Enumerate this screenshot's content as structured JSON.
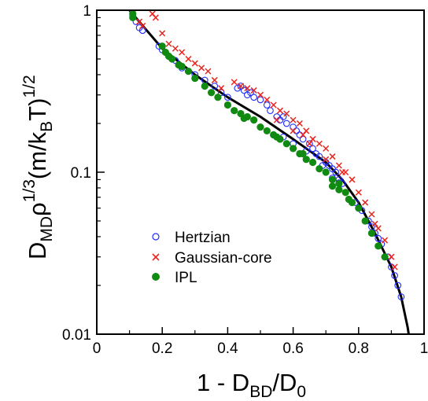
{
  "chart_data": {
    "type": "scatter",
    "x_label_parts": {
      "base": "1 - D",
      "sub": "BD",
      "tail": "/D",
      "sub2": "0"
    },
    "y_label_parts": {
      "d": "D",
      "dsub": "MD",
      "rho": "ρ",
      "rho_sup": "1/3",
      "mid": "(m/k",
      "ksub": "B",
      "tail": "T)",
      "sup": "1/2"
    },
    "x_axis": {
      "min": 0,
      "max": 1,
      "ticks": [
        0,
        0.2,
        0.4,
        0.6,
        0.8,
        1
      ],
      "tick_labels": [
        "0",
        "0.2",
        "0.4",
        "0.6",
        "0.8",
        "1"
      ]
    },
    "y_axis": {
      "scale": "log",
      "min": 0.01,
      "max": 1,
      "ticks": [
        0.01,
        0.1,
        1
      ],
      "tick_labels": [
        "0.01",
        "0.1",
        "1"
      ]
    },
    "legend_position": "bottom-left",
    "colors": {
      "hertzian": "#1f2bff",
      "gaussian": "#e8251f",
      "ipl": "#118a11",
      "fit": "#000000"
    },
    "series": [
      {
        "name": "Hertzian",
        "marker": "open-circle",
        "points": [
          [
            0.11,
            0.92
          ],
          [
            0.12,
            0.85
          ],
          [
            0.13,
            0.78
          ],
          [
            0.14,
            0.75
          ],
          [
            0.19,
            0.6
          ],
          [
            0.2,
            0.57
          ],
          [
            0.22,
            0.52
          ],
          [
            0.24,
            0.49
          ],
          [
            0.26,
            0.44
          ],
          [
            0.28,
            0.42
          ],
          [
            0.3,
            0.4
          ],
          [
            0.33,
            0.37
          ],
          [
            0.36,
            0.34
          ],
          [
            0.38,
            0.31
          ],
          [
            0.4,
            0.29
          ],
          [
            0.43,
            0.33
          ],
          [
            0.44,
            0.34
          ],
          [
            0.45,
            0.32
          ],
          [
            0.46,
            0.3
          ],
          [
            0.47,
            0.31
          ],
          [
            0.48,
            0.29
          ],
          [
            0.5,
            0.28
          ],
          [
            0.52,
            0.26
          ],
          [
            0.53,
            0.24
          ],
          [
            0.55,
            0.22
          ],
          [
            0.56,
            0.21
          ],
          [
            0.57,
            0.22
          ],
          [
            0.58,
            0.2
          ],
          [
            0.6,
            0.19
          ],
          [
            0.61,
            0.18
          ],
          [
            0.62,
            0.17
          ],
          [
            0.63,
            0.16
          ],
          [
            0.65,
            0.15
          ],
          [
            0.66,
            0.14
          ],
          [
            0.67,
            0.13
          ],
          [
            0.68,
            0.125
          ],
          [
            0.7,
            0.115
          ],
          [
            0.71,
            0.11
          ],
          [
            0.72,
            0.105
          ],
          [
            0.73,
            0.1
          ],
          [
            0.74,
            0.09
          ],
          [
            0.75,
            0.085
          ],
          [
            0.57,
            0.165
          ],
          [
            0.6,
            0.15
          ],
          [
            0.64,
            0.135
          ],
          [
            0.69,
            0.11
          ],
          [
            0.72,
            0.092
          ],
          [
            0.74,
            0.086
          ],
          [
            0.79,
            0.065
          ],
          [
            0.81,
            0.058
          ],
          [
            0.83,
            0.05
          ],
          [
            0.85,
            0.042
          ],
          [
            0.87,
            0.036
          ],
          [
            0.89,
            0.03
          ],
          [
            0.9,
            0.026
          ],
          [
            0.91,
            0.023
          ],
          [
            0.92,
            0.02
          ],
          [
            0.93,
            0.017
          ],
          [
            0.84,
            0.046
          ],
          [
            0.86,
            0.039
          ]
        ]
      },
      {
        "name": "Gaussian-core",
        "marker": "cross",
        "points": [
          [
            0.11,
            0.95
          ],
          [
            0.13,
            0.85
          ],
          [
            0.14,
            0.8
          ],
          [
            0.17,
            0.95
          ],
          [
            0.18,
            0.9
          ],
          [
            0.2,
            0.72
          ],
          [
            0.22,
            0.62
          ],
          [
            0.24,
            0.58
          ],
          [
            0.26,
            0.55
          ],
          [
            0.28,
            0.5
          ],
          [
            0.3,
            0.47
          ],
          [
            0.32,
            0.44
          ],
          [
            0.34,
            0.42
          ],
          [
            0.36,
            0.37
          ],
          [
            0.38,
            0.33
          ],
          [
            0.42,
            0.36
          ],
          [
            0.44,
            0.34
          ],
          [
            0.46,
            0.33
          ],
          [
            0.48,
            0.32
          ],
          [
            0.5,
            0.3
          ],
          [
            0.52,
            0.28
          ],
          [
            0.54,
            0.26
          ],
          [
            0.56,
            0.24
          ],
          [
            0.58,
            0.23
          ],
          [
            0.6,
            0.21
          ],
          [
            0.62,
            0.2
          ],
          [
            0.64,
            0.18
          ],
          [
            0.66,
            0.16
          ],
          [
            0.68,
            0.15
          ],
          [
            0.7,
            0.14
          ],
          [
            0.72,
            0.125
          ],
          [
            0.74,
            0.11
          ],
          [
            0.76,
            0.1
          ],
          [
            0.78,
            0.09
          ],
          [
            0.8,
            0.075
          ],
          [
            0.82,
            0.065
          ],
          [
            0.84,
            0.055
          ],
          [
            0.86,
            0.045
          ],
          [
            0.88,
            0.038
          ],
          [
            0.9,
            0.03
          ],
          [
            0.91,
            0.026
          ],
          [
            0.55,
            0.21
          ],
          [
            0.6,
            0.18
          ],
          [
            0.65,
            0.15
          ],
          [
            0.7,
            0.12
          ],
          [
            0.75,
            0.1
          ],
          [
            0.85,
            0.048
          ],
          [
            0.63,
            0.17
          ]
        ]
      },
      {
        "name": "IPL",
        "marker": "filled-circle",
        "points": [
          [
            0.11,
            0.95
          ],
          [
            0.11,
            0.9
          ],
          [
            0.2,
            0.6
          ],
          [
            0.21,
            0.55
          ],
          [
            0.22,
            0.52
          ],
          [
            0.23,
            0.5
          ],
          [
            0.25,
            0.46
          ],
          [
            0.26,
            0.45
          ],
          [
            0.28,
            0.42
          ],
          [
            0.3,
            0.38
          ],
          [
            0.33,
            0.34
          ],
          [
            0.35,
            0.31
          ],
          [
            0.37,
            0.29
          ],
          [
            0.4,
            0.26
          ],
          [
            0.42,
            0.24
          ],
          [
            0.44,
            0.23
          ],
          [
            0.46,
            0.22
          ],
          [
            0.48,
            0.21
          ],
          [
            0.5,
            0.19
          ],
          [
            0.52,
            0.18
          ],
          [
            0.54,
            0.17
          ],
          [
            0.56,
            0.16
          ],
          [
            0.58,
            0.15
          ],
          [
            0.6,
            0.14
          ],
          [
            0.62,
            0.13
          ],
          [
            0.64,
            0.12
          ],
          [
            0.66,
            0.115
          ],
          [
            0.68,
            0.105
          ],
          [
            0.7,
            0.1
          ],
          [
            0.72,
            0.09
          ],
          [
            0.74,
            0.085
          ],
          [
            0.76,
            0.075
          ],
          [
            0.78,
            0.065
          ],
          [
            0.8,
            0.06
          ],
          [
            0.82,
            0.05
          ],
          [
            0.84,
            0.042
          ],
          [
            0.86,
            0.035
          ],
          [
            0.88,
            0.03
          ],
          [
            0.72,
            0.082
          ],
          [
            0.74,
            0.078
          ],
          [
            0.77,
            0.068
          ],
          [
            0.63,
            0.13
          ],
          [
            0.55,
            0.165
          ],
          [
            0.45,
            0.215
          ]
        ]
      }
    ],
    "fit_curve": {
      "name": "",
      "points": [
        [
          0.1,
          1.0
        ],
        [
          0.2,
          0.58
        ],
        [
          0.3,
          0.4
        ],
        [
          0.4,
          0.29
        ],
        [
          0.5,
          0.22
        ],
        [
          0.6,
          0.16
        ],
        [
          0.7,
          0.115
        ],
        [
          0.75,
          0.09
        ],
        [
          0.8,
          0.065
        ],
        [
          0.85,
          0.042
        ],
        [
          0.9,
          0.026
        ],
        [
          0.93,
          0.017
        ],
        [
          0.95,
          0.011
        ],
        [
          0.96,
          0.008
        ]
      ]
    }
  }
}
